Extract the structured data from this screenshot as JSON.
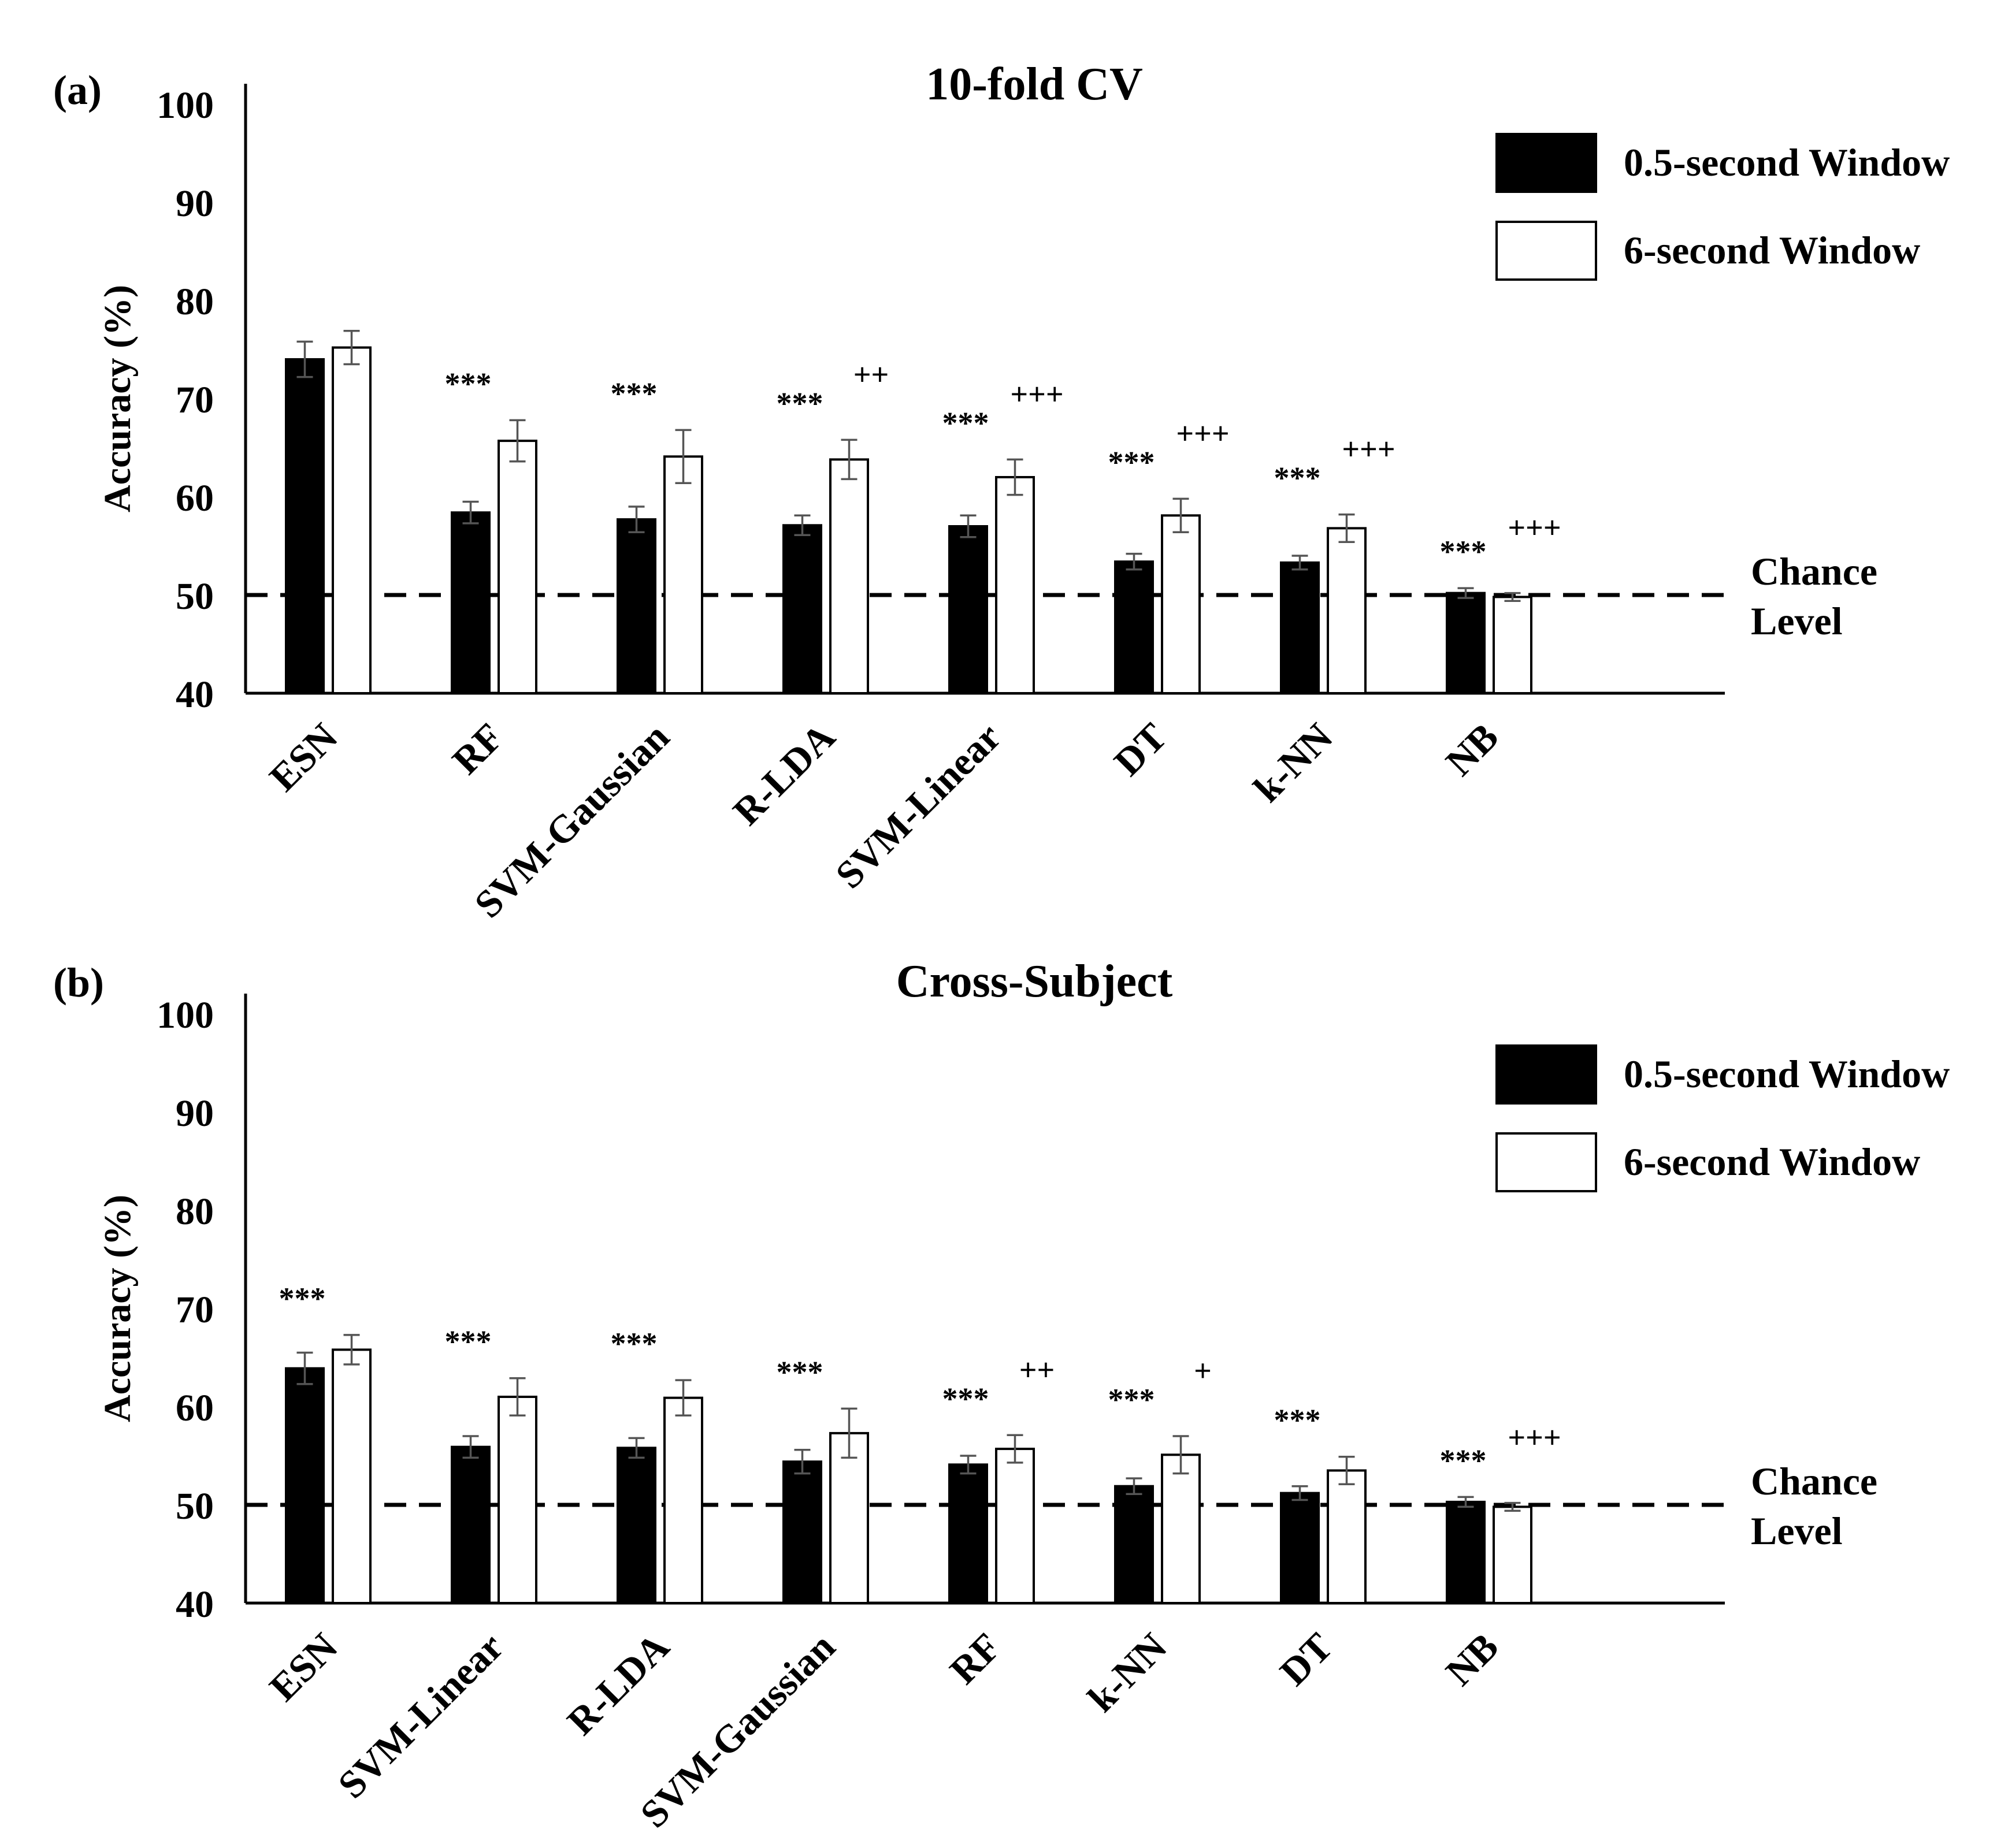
{
  "chart_data": [
    {
      "type": "bar",
      "panel": "(a)",
      "title": "10-fold CV",
      "ylabel": "Accuracy (%)",
      "xlabel": "",
      "ylim": [
        40,
        100
      ],
      "yticks": [
        "40",
        "50",
        "60",
        "70",
        "80",
        "90",
        "100"
      ],
      "categories": [
        "ESN",
        "RF",
        "SVM-Gaussian",
        "R-LDA",
        "SVM-Linear",
        "DT",
        "k-NN",
        "NB"
      ],
      "series": [
        {
          "name": "0.5-second Window",
          "color": "#000000",
          "values": [
            74.0,
            58.4,
            57.7,
            57.1,
            57.0,
            53.4,
            53.3,
            50.2
          ],
          "errors": [
            1.8,
            1.1,
            1.3,
            1.0,
            1.1,
            0.8,
            0.7,
            0.5
          ],
          "significance": [
            "",
            "***",
            "***",
            "***",
            "***",
            "***",
            "***",
            "***"
          ]
        },
        {
          "name": "6-second Window",
          "color": "#ffffff",
          "values": [
            75.2,
            65.7,
            64.1,
            63.8,
            62.0,
            58.1,
            56.8,
            49.8
          ],
          "errors": [
            1.7,
            2.1,
            2.7,
            2.0,
            1.8,
            1.7,
            1.4,
            0.4
          ],
          "significance": [
            "",
            "",
            "",
            "++",
            "+++",
            "+++",
            "+++",
            "+++"
          ]
        }
      ],
      "legend": [
        "0.5-second Window",
        "6-second Window"
      ],
      "legend_position": "top-right",
      "reference_line": {
        "value": 50,
        "label_line1": "Chance",
        "label_line2": "Level",
        "style": "dashed"
      }
    },
    {
      "type": "bar",
      "panel": "(b)",
      "title": "Cross-Subject",
      "ylabel": "Accuracy (%)",
      "xlabel": "",
      "ylim": [
        40,
        100
      ],
      "yticks": [
        "40",
        "50",
        "60",
        "70",
        "80",
        "90",
        "100"
      ],
      "categories": [
        "ESN",
        "SVM-Linear",
        "R-LDA",
        "SVM-Gaussian",
        "RF",
        "k-NN",
        "DT",
        "NB"
      ],
      "series": [
        {
          "name": "0.5-second Window",
          "color": "#000000",
          "values": [
            63.9,
            55.9,
            55.8,
            54.4,
            54.1,
            51.9,
            51.2,
            50.3
          ],
          "errors": [
            1.6,
            1.1,
            1.0,
            1.2,
            0.9,
            0.8,
            0.7,
            0.5
          ],
          "significance": [
            "***",
            "***",
            "***",
            "***",
            "***",
            "***",
            "***",
            "***"
          ]
        },
        {
          "name": "6-second Window",
          "color": "#ffffff",
          "values": [
            65.8,
            61.0,
            60.9,
            57.3,
            55.7,
            55.1,
            53.5,
            49.8
          ],
          "errors": [
            1.5,
            1.9,
            1.8,
            2.5,
            1.4,
            1.9,
            1.4,
            0.4
          ],
          "significance": [
            "",
            "",
            "",
            "",
            "++",
            "+",
            "",
            "+++"
          ]
        }
      ],
      "legend": [
        "0.5-second Window",
        "6-second Window"
      ],
      "legend_position": "top-right",
      "reference_line": {
        "value": 50,
        "label_line1": "Chance",
        "label_line2": "Level",
        "style": "dashed"
      }
    }
  ]
}
